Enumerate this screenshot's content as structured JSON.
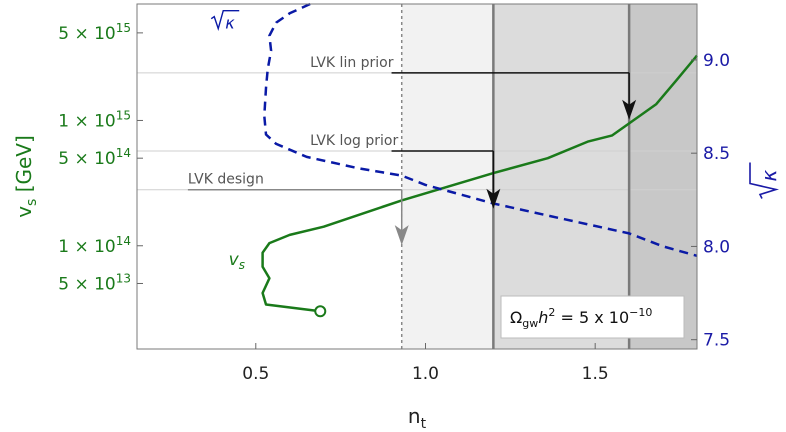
{
  "chart_data": {
    "type": "line",
    "xlabel": "n",
    "xlabel_sub": "t",
    "xlim": [
      0.15,
      1.8
    ],
    "x_ticks": [
      {
        "value": 0.5,
        "label": "0.5"
      },
      {
        "value": 1.0,
        "label": "1.0"
      },
      {
        "value": 1.5,
        "label": "1.5"
      }
    ],
    "ylabel_left": "v",
    "ylabel_left_sub": "s",
    "ylabel_left_unit": " [GeV]",
    "ylim_left": [
      15000000000000.0,
      8500000000000000.0
    ],
    "yscale_left": "log",
    "y_ticks_left": [
      {
        "value": 5000000000000000.0,
        "mant": "5",
        "exp": "15"
      },
      {
        "value": 1000000000000000.0,
        "mant": "1",
        "exp": "15"
      },
      {
        "value": 500000000000000.0,
        "mant": "5",
        "exp": "14"
      },
      {
        "value": 100000000000000.0,
        "mant": "1",
        "exp": "14"
      },
      {
        "value": 50000000000000.0,
        "mant": "5",
        "exp": "13"
      }
    ],
    "ylabel_right": "κ",
    "ylim_right": [
      7.45,
      9.3
    ],
    "y_ticks_right": [
      {
        "value": 7.5,
        "label": "7.5"
      },
      {
        "value": 8.0,
        "label": "8.0"
      },
      {
        "value": 8.5,
        "label": "8.5"
      },
      {
        "value": 9.0,
        "label": "9.0"
      }
    ],
    "series": [
      {
        "name": "v",
        "name_sub": "s",
        "axis": "left",
        "color": "#1a7a1a",
        "style": "solid",
        "points": [
          [
            0.69,
            30000000000000.0
          ],
          [
            0.53,
            34000000000000.0
          ],
          [
            0.52,
            42000000000000.0
          ],
          [
            0.54,
            55000000000000.0
          ],
          [
            0.52,
            68000000000000.0
          ],
          [
            0.52,
            88000000000000.0
          ],
          [
            0.54,
            105000000000000.0
          ],
          [
            0.6,
            122000000000000.0
          ],
          [
            0.7,
            142000000000000.0
          ],
          [
            0.93,
            230000000000000.0
          ],
          [
            1.2,
            380000000000000.0
          ],
          [
            1.36,
            500000000000000.0
          ],
          [
            1.48,
            680000000000000.0
          ],
          [
            1.55,
            760000000000000.0
          ],
          [
            1.61,
            990000000000000.0
          ],
          [
            1.68,
            1350000000000000.0
          ],
          [
            1.74,
            2100000000000000.0
          ],
          [
            1.8,
            3300000000000000.0
          ]
        ],
        "marker_end": [
          0.69,
          30000000000000.0
        ]
      },
      {
        "name": "κ",
        "axis": "right",
        "color": "#0a1aa6",
        "style": "dashed",
        "points": [
          [
            0.66,
            9.3
          ],
          [
            0.6,
            9.25
          ],
          [
            0.56,
            9.2
          ],
          [
            0.54,
            9.13
          ],
          [
            0.545,
            9.05
          ],
          [
            0.535,
            8.95
          ],
          [
            0.53,
            8.85
          ],
          [
            0.525,
            8.7
          ],
          [
            0.53,
            8.6
          ],
          [
            0.56,
            8.55
          ],
          [
            0.65,
            8.48
          ],
          [
            0.8,
            8.42
          ],
          [
            0.93,
            8.38
          ],
          [
            1.0,
            8.33
          ],
          [
            1.2,
            8.23
          ],
          [
            1.4,
            8.15
          ],
          [
            1.6,
            8.07
          ],
          [
            1.7,
            8.0
          ],
          [
            1.8,
            7.95
          ]
        ]
      }
    ],
    "verticals": [
      {
        "x": 0.93,
        "style": "dotted",
        "color": "#888888"
      },
      {
        "x": 1.2,
        "style": "solid",
        "color": "#7a7a7a"
      },
      {
        "x": 1.6,
        "style": "solid",
        "color": "#7a7a7a"
      }
    ],
    "shaded_regions": [
      {
        "from": 0.93,
        "to": 1.2,
        "color": "#f2f2f2"
      },
      {
        "from": 1.2,
        "to": 1.6,
        "color": "#dcdcdc"
      },
      {
        "from": 1.6,
        "to": 1.8,
        "color": "#c8c8c8"
      }
    ],
    "horizontals": [
      {
        "y": 2400000000000000.0,
        "color": "#cfcfcf"
      },
      {
        "y": 570000000000000.0,
        "color": "#cfcfcf"
      },
      {
        "y": 280000000000000.0,
        "color": "#cfcfcf"
      }
    ],
    "annotations": [
      {
        "label": "LVK lin prior",
        "x_text": 0.66,
        "x_line": 0.9,
        "x_to": 1.6,
        "y": 2400000000000000.0,
        "y_arrow": 1050000000000000.0,
        "color": "#111111"
      },
      {
        "label": "LVK log prior",
        "x_text": 0.66,
        "x_line": 0.9,
        "x_to": 1.2,
        "y": 570000000000000.0,
        "y_arrow": 205000000000000.0,
        "color": "#111111"
      },
      {
        "label": "LVK design",
        "x_text": 0.3,
        "x_line": 0.3,
        "x_to": 0.93,
        "y": 280000000000000.0,
        "y_arrow": 105000000000000.0,
        "color": "#888888"
      }
    ],
    "series_labels": [
      {
        "text": "κ",
        "series": 1,
        "x": 0.41,
        "y_right": 9.2
      },
      {
        "text": "v",
        "sub": "s",
        "series": 0,
        "x": 0.42,
        "y": 70000000000000.0
      }
    ],
    "legend_box": {
      "main": "Ω",
      "sub1": "gw",
      "mid": "h",
      "sup1": "2",
      "rest": " = 5 x 10",
      "sup2": "−10"
    }
  }
}
